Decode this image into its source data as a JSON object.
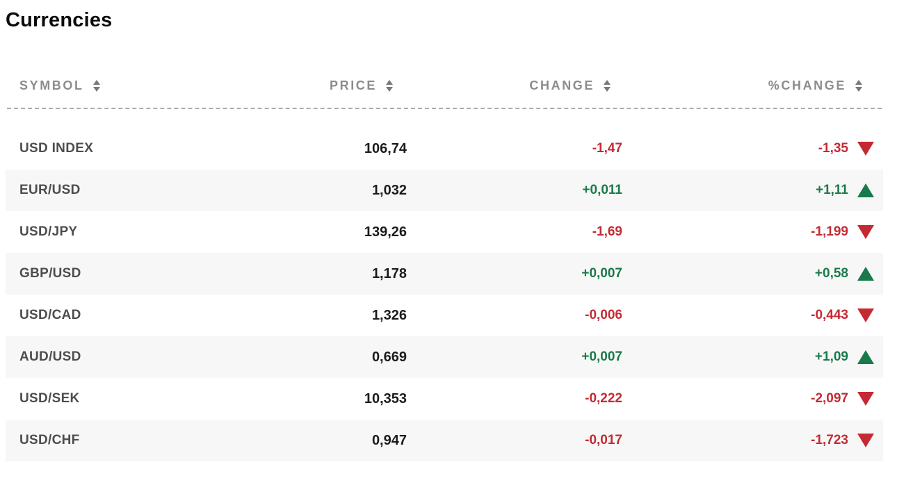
{
  "title": "Currencies",
  "colors": {
    "positive": "#19794a",
    "negative": "#c52a33",
    "header_text": "#8c8c8c",
    "symbol_text": "#4d4d4d",
    "price_text": "#1c1c1c",
    "row_alt_bg": "#f7f7f7",
    "divider": "#adadad"
  },
  "table": {
    "columns": [
      {
        "key": "symbol",
        "label": "SYMBOL",
        "sortable": true
      },
      {
        "key": "price",
        "label": "PRICE",
        "sortable": true
      },
      {
        "key": "change",
        "label": "CHANGE",
        "sortable": true
      },
      {
        "key": "pct_change",
        "label": "%CHANGE",
        "sortable": true
      }
    ],
    "rows": [
      {
        "symbol": "USD INDEX",
        "price": "106,74",
        "change": "-1,47",
        "pct_change": "-1,35",
        "direction": "down"
      },
      {
        "symbol": "EUR/USD",
        "price": "1,032",
        "change": "+0,011",
        "pct_change": "+1,11",
        "direction": "up"
      },
      {
        "symbol": "USD/JPY",
        "price": "139,26",
        "change": "-1,69",
        "pct_change": "-1,199",
        "direction": "down"
      },
      {
        "symbol": "GBP/USD",
        "price": "1,178",
        "change": "+0,007",
        "pct_change": "+0,58",
        "direction": "up"
      },
      {
        "symbol": "USD/CAD",
        "price": "1,326",
        "change": "-0,006",
        "pct_change": "-0,443",
        "direction": "down"
      },
      {
        "symbol": "AUD/USD",
        "price": "0,669",
        "change": "+0,007",
        "pct_change": "+1,09",
        "direction": "up"
      },
      {
        "symbol": "USD/SEK",
        "price": "10,353",
        "change": "-0,222",
        "pct_change": "-2,097",
        "direction": "down"
      },
      {
        "symbol": "USD/CHF",
        "price": "0,947",
        "change": "-0,017",
        "pct_change": "-1,723",
        "direction": "down"
      }
    ]
  },
  "chart_data": {
    "type": "table",
    "title": "Currencies",
    "columns": [
      "SYMBOL",
      "PRICE",
      "CHANGE",
      "%CHANGE"
    ],
    "rows": [
      [
        "USD INDEX",
        "106,74",
        "-1,47",
        "-1,35"
      ],
      [
        "EUR/USD",
        "1,032",
        "+0,011",
        "+1,11"
      ],
      [
        "USD/JPY",
        "139,26",
        "-1,69",
        "-1,199"
      ],
      [
        "GBP/USD",
        "1,178",
        "+0,007",
        "+0,58"
      ],
      [
        "USD/CAD",
        "1,326",
        "-0,006",
        "-0,443"
      ],
      [
        "AUD/USD",
        "0,669",
        "+0,007",
        "+1,09"
      ],
      [
        "USD/SEK",
        "10,353",
        "-0,222",
        "-2,097"
      ],
      [
        "USD/CHF",
        "0,947",
        "-0,017",
        "-1,723"
      ]
    ]
  }
}
